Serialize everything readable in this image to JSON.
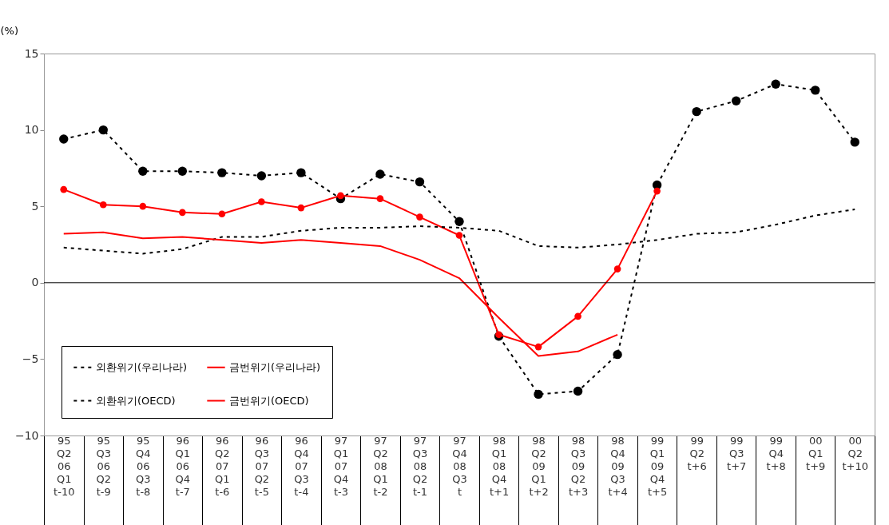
{
  "chart_data": {
    "type": "line",
    "ylabel": "(%)",
    "ylim": [
      -10,
      15
    ],
    "yticks": [
      -10,
      -5,
      0,
      5,
      10,
      15
    ],
    "grid": false,
    "legend": "bottom left",
    "categories": [
      "95\nQ2\n06\nQ1\nt-10",
      "95\nQ3\n06\nQ2\nt-9",
      "95\nQ4\n06\nQ3\nt-8",
      "96\nQ1\n06\nQ4\nt-7",
      "96\nQ2\n07\nQ1\nt-6",
      "96\nQ3\n07\nQ2\nt-5",
      "96\nQ4\n07\nQ3\nt-4",
      "97\nQ1\n07\nQ4\nt-3",
      "97\nQ2\n08\nQ1\nt-2",
      "97\nQ3\n08\nQ2\nt-1",
      "97\nQ4\n08\nQ3\nt",
      "98\nQ1\n08\nQ4\nt+1",
      "98\nQ2\n09\nQ1\nt+2",
      "98\nQ3\n09\nQ2\nt+3",
      "98\nQ4\n09\nQ3\nt+4",
      "99\nQ1\n09\nQ4\nt+5",
      "99\nQ2\n\n\nt+6",
      "99\nQ3\n\n\nt+7",
      "99\nQ4\n\n\nt+8",
      "00\nQ1\n\n\nt+9",
      "00\nQ2\n\n\nt+10"
    ],
    "series": [
      {
        "name": "외환위기(우리나라)",
        "color": "#000000",
        "marker": "circle",
        "line_style": "dashed",
        "values": [
          9.4,
          10.0,
          7.3,
          7.3,
          7.2,
          7.0,
          7.2,
          5.5,
          7.1,
          6.6,
          4.0,
          -3.5,
          -7.3,
          -7.1,
          -4.7,
          6.4,
          11.2,
          11.9,
          13.0,
          12.6,
          9.2
        ]
      },
      {
        "name": "금번위기(우리나라)",
        "color": "#ff0000",
        "marker": "circle",
        "line_style": "solid",
        "values": [
          6.1,
          5.1,
          5.0,
          4.6,
          4.5,
          5.3,
          4.9,
          5.7,
          5.5,
          4.3,
          3.1,
          -3.4,
          -4.2,
          -2.2,
          0.9,
          6.0,
          null,
          null,
          null,
          null,
          null
        ]
      },
      {
        "name": "외환위기(OECD)",
        "color": "#000000",
        "marker": "none",
        "line_style": "dashed",
        "values": [
          2.3,
          2.1,
          1.9,
          2.2,
          3.0,
          3.0,
          3.4,
          3.6,
          3.6,
          3.7,
          3.6,
          3.4,
          2.4,
          2.3,
          2.5,
          2.8,
          3.2,
          3.3,
          3.8,
          4.4,
          4.8
        ]
      },
      {
        "name": "금번위기(OECD)",
        "color": "#ff0000",
        "marker": "none",
        "line_style": "solid",
        "values": [
          3.2,
          3.3,
          2.9,
          3.0,
          2.8,
          2.6,
          2.8,
          2.6,
          2.4,
          1.5,
          0.3,
          -2.3,
          -4.8,
          -4.5,
          -3.4,
          null,
          null,
          null,
          null,
          null,
          null
        ]
      }
    ],
    "ref_lines": [
      {
        "axis": "y",
        "value": 0,
        "color": "#000000"
      }
    ]
  }
}
